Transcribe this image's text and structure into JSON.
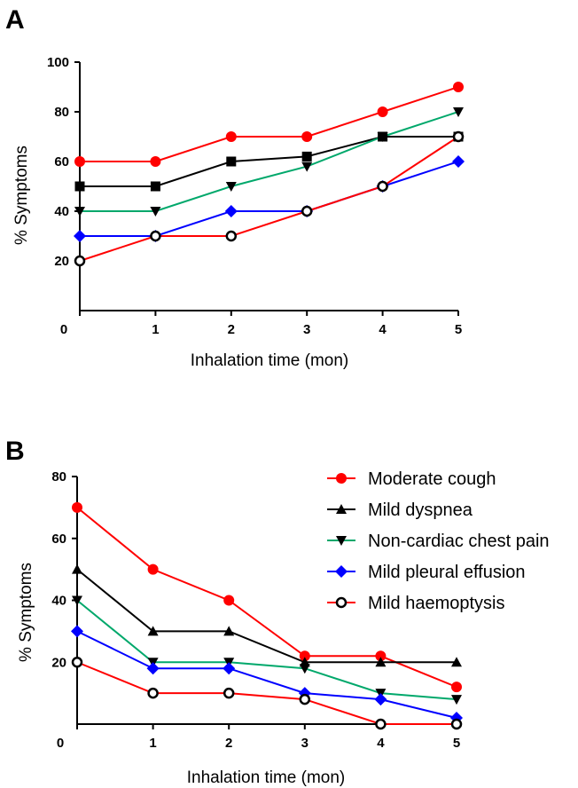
{
  "chart_data": [
    {
      "type": "line",
      "panel": "A",
      "x": [
        0,
        1,
        2,
        3,
        4,
        5
      ],
      "xlim": [
        0,
        5
      ],
      "ylim": [
        0,
        100
      ],
      "xticks": [
        "0",
        "1",
        "2",
        "3",
        "4",
        "5"
      ],
      "yticks": [
        "20",
        "40",
        "60",
        "80",
        "100"
      ],
      "xlabel": "Inhalation time (mon)",
      "ylabel": "% Symptoms",
      "grid": false,
      "series": [
        {
          "marker": "circle",
          "color": "#ff0000",
          "values": [
            60,
            60,
            70,
            70,
            80,
            90
          ]
        },
        {
          "marker": "square",
          "color": "#000000",
          "values": [
            50,
            50,
            60,
            62,
            70,
            70
          ]
        },
        {
          "marker": "triangle-down",
          "color": "#00a86b",
          "values": [
            40,
            40,
            50,
            58,
            70,
            80
          ]
        },
        {
          "marker": "diamond",
          "color": "#0000ff",
          "values": [
            30,
            30,
            40,
            40,
            50,
            60
          ]
        },
        {
          "marker": "open-circle",
          "color": "#ff0000",
          "values": [
            20,
            30,
            30,
            40,
            50,
            70
          ]
        }
      ]
    },
    {
      "type": "line",
      "panel": "B",
      "x": [
        0,
        1,
        2,
        3,
        4,
        5
      ],
      "xlim": [
        0,
        5
      ],
      "ylim": [
        0,
        80
      ],
      "xticks": [
        "0",
        "1",
        "2",
        "3",
        "4",
        "5"
      ],
      "yticks": [
        "20",
        "40",
        "60",
        "80"
      ],
      "xlabel": "Inhalation time (mon)",
      "ylabel": "% Symptoms",
      "grid": false,
      "legend_position": "top-right",
      "series": [
        {
          "name": "Moderate cough",
          "marker": "circle",
          "color": "#ff0000",
          "values": [
            70,
            50,
            40,
            22,
            22,
            12
          ]
        },
        {
          "name": "Mild dyspnea",
          "marker": "triangle-up",
          "color": "#000000",
          "values": [
            50,
            30,
            30,
            20,
            20,
            20
          ]
        },
        {
          "name": "Non-cardiac chest pain",
          "marker": "triangle-down",
          "color": "#00a86b",
          "values": [
            40,
            20,
            20,
            18,
            10,
            8
          ]
        },
        {
          "name": "Mild pleural effusion",
          "marker": "diamond",
          "color": "#0000ff",
          "values": [
            30,
            18,
            18,
            10,
            8,
            2
          ]
        },
        {
          "name": "Mild haemoptysis",
          "marker": "open-circle",
          "color": "#ff0000",
          "values": [
            20,
            10,
            10,
            8,
            0,
            0
          ]
        }
      ]
    }
  ]
}
